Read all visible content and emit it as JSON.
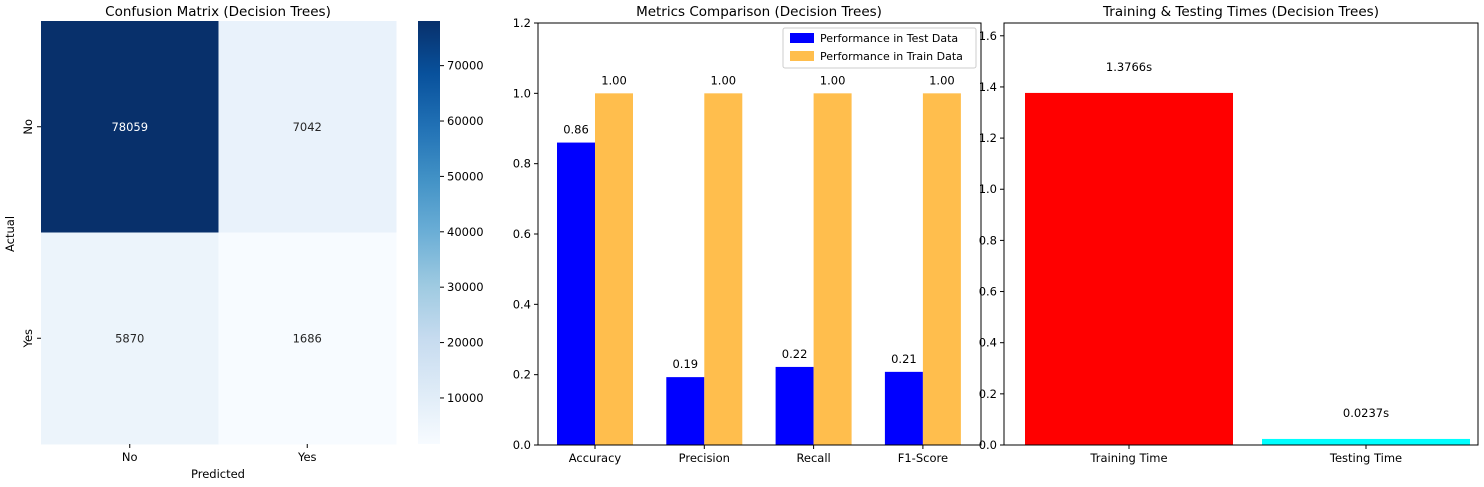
{
  "chart_data": [
    {
      "type": "heatmap",
      "title": "Confusion Matrix (Decision Trees)",
      "xlabel": "Predicted",
      "ylabel": "Actual",
      "x_categories": [
        "No",
        "Yes"
      ],
      "y_categories": [
        "No",
        "Yes"
      ],
      "values": [
        [
          78059,
          7042
        ],
        [
          5870,
          1686
        ]
      ],
      "value_labels": [
        [
          "78059",
          "7042"
        ],
        [
          "5870",
          "1686"
        ]
      ],
      "colormap": "Blues",
      "colorbar": {
        "range": [
          1686,
          78059
        ],
        "ticks": [
          10000,
          20000,
          30000,
          40000,
          50000,
          60000,
          70000
        ],
        "tick_labels": [
          "10000",
          "20000",
          "30000",
          "40000",
          "50000",
          "60000",
          "70000"
        ]
      }
    },
    {
      "type": "bar",
      "title": "Metrics Comparison (Decision Trees)",
      "xlabel": "",
      "ylabel": "",
      "categories": [
        "Accuracy",
        "Precision",
        "Recall",
        "F1-Score"
      ],
      "ylim": [
        0,
        1.2
      ],
      "yticks": [
        "0.0",
        "0.2",
        "0.4",
        "0.6",
        "0.8",
        "1.0",
        "1.2"
      ],
      "legend_position": "top-right",
      "series": [
        {
          "name": "Performance in Test Data",
          "color": "#0000ff",
          "values": [
            0.86,
            0.193,
            0.222,
            0.208
          ],
          "labels": [
            "0.86",
            "0.19",
            "0.22",
            "0.21"
          ]
        },
        {
          "name": "Performance in Train Data",
          "color": "#ffbe4d",
          "label_color": "#ffa500",
          "values": [
            1.0,
            1.0,
            1.0,
            1.0
          ],
          "labels": [
            "1.00",
            "1.00",
            "1.00",
            "1.00"
          ]
        }
      ]
    },
    {
      "type": "bar",
      "title": "Training & Testing Times (Decision Trees)",
      "xlabel": "",
      "ylabel": "",
      "categories": [
        "Training Time",
        "Testing Time"
      ],
      "values": [
        1.3766,
        0.0237
      ],
      "labels": [
        "1.3766s",
        "0.0237s"
      ],
      "colors": [
        "#ff0000",
        "#00ffff"
      ],
      "ylim": [
        0,
        1.65
      ],
      "yticks": [
        "0.0",
        "0.2",
        "0.4",
        "0.6",
        "0.8",
        "1.0",
        "1.2",
        "1.4",
        "1.6"
      ]
    }
  ]
}
